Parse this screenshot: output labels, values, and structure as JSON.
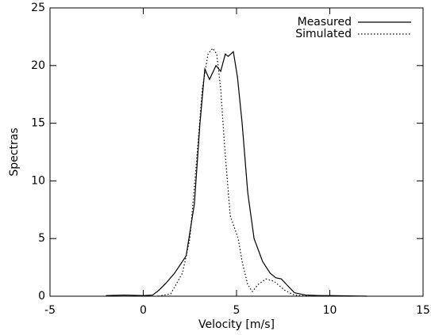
{
  "chart_data": {
    "type": "line",
    "xlabel": "Velocity [m/s]",
    "ylabel": "Spectras",
    "xlim": [
      -5,
      15
    ],
    "xticks": [
      -5,
      0,
      5,
      10,
      15
    ],
    "ylim": [
      0,
      25
    ],
    "yticks": [
      0,
      5,
      10,
      15,
      20,
      25
    ],
    "legend": "upper right",
    "series": [
      {
        "name": "Measured",
        "color": "#000000",
        "dash": "solid",
        "x": [
          -2,
          -1,
          0,
          0.5,
          0.83,
          1.2,
          1.68,
          2.3,
          2.74,
          3.04,
          3.3,
          3.55,
          3.9,
          4.15,
          4.4,
          4.55,
          4.83,
          5.05,
          5.3,
          5.6,
          5.94,
          6.4,
          6.8,
          7.1,
          7.4,
          8.1,
          8.7,
          9.5,
          10,
          12
        ],
        "values": [
          0.05,
          0.1,
          0.05,
          0.1,
          0.5,
          1.1,
          2,
          3.5,
          8,
          15,
          19.7,
          18.8,
          20,
          19.5,
          21,
          20.8,
          21.2,
          19,
          15,
          9,
          5,
          3,
          2,
          1.6,
          1.5,
          0.3,
          0.1,
          0.05,
          0.05,
          0
        ]
      },
      {
        "name": "Simulated",
        "color": "#000000",
        "dash": "dotted",
        "x": [
          0.8,
          1.47,
          2.1,
          2.5,
          2.87,
          3.17,
          3.47,
          3.72,
          3.94,
          4.15,
          4.36,
          4.66,
          5.09,
          5.3,
          5.6,
          5.85,
          6.15,
          6.57,
          7.0,
          7.6,
          8.1,
          9
        ],
        "values": [
          0,
          0.2,
          2,
          5,
          12,
          18,
          21,
          21.5,
          21,
          18,
          13,
          7,
          5,
          3,
          1,
          0.4,
          1,
          1.5,
          1.3,
          0.5,
          0.1,
          0
        ]
      }
    ]
  }
}
